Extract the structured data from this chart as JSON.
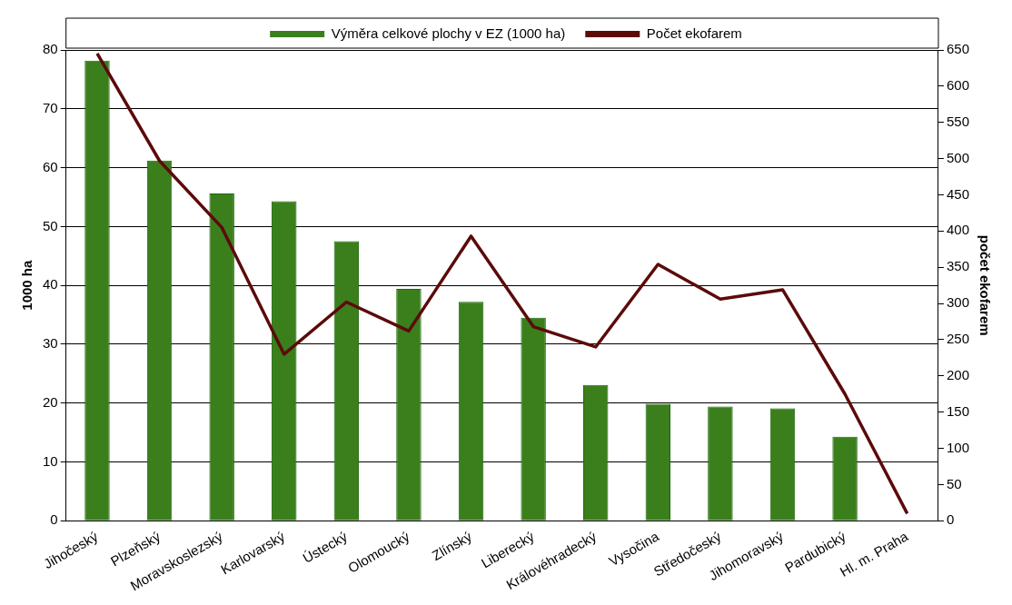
{
  "chart_data": {
    "type": "bar",
    "categories": [
      "Jihočeský",
      "Plzeňský",
      "Moravskoslezský",
      "Karlovarský",
      "Ústecký",
      "Olomoucký",
      "Zlínský",
      "Liberecký",
      "Královéhradecký",
      "Vysočina",
      "Středočeský",
      "Jihomoravský",
      "Pardubický",
      "Hl. m. Praha"
    ],
    "series": [
      {
        "name": "Výměra celkové plochy v EZ (1000 ha)",
        "color": "#3a7f1c",
        "values": [
          78.2,
          61.2,
          55.6,
          54.3,
          47.5,
          39.4,
          37.2,
          34.5,
          23.1,
          19.9,
          19.4,
          19.1,
          14.3,
          null
        ]
      },
      {
        "name": "Počet ekofarem",
        "type": "line",
        "axis": "y2",
        "color": "#5c0a0a",
        "values": [
          645,
          497,
          405,
          230,
          302,
          262,
          393,
          268,
          240,
          354,
          306,
          319,
          175,
          10
        ]
      }
    ],
    "ylabel": "1000 ha",
    "y2label": "počet ekofarem",
    "ylim": [
      0,
      80
    ],
    "yticks": [
      0,
      10,
      20,
      30,
      40,
      50,
      60,
      70,
      80
    ],
    "y2lim": [
      0,
      650
    ],
    "y2ticks": [
      0,
      50,
      100,
      150,
      200,
      250,
      300,
      350,
      400,
      450,
      500,
      550,
      600,
      650
    ],
    "grid": "y",
    "legend": "top",
    "marker": "none"
  }
}
